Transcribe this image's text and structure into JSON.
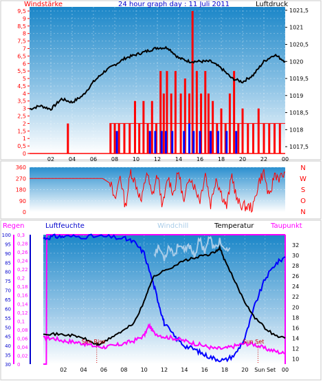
{
  "title": "24 hour graph day : 11 Juli 2011",
  "colors": {
    "wind": "#ff0000",
    "pressure": "#000000",
    "gust": "#0000ff",
    "humidity": "#0000ff",
    "chill": "#a8cce8",
    "temp": "#000000",
    "dew": "#ff00ff",
    "rain": "#ff00ff"
  },
  "chart_data": [
    {
      "type": "line",
      "name": "wind-pressure",
      "left_label": "Windstärke",
      "right_label": "Luftdruck",
      "x_ticks": [
        "02",
        "04",
        "06",
        "08",
        "10",
        "12",
        "14",
        "16",
        "18",
        "20",
        "22",
        "00"
      ],
      "y_left_ticks": [
        "0",
        "0,5",
        "1",
        "1,5",
        "2",
        "2,5",
        "3",
        "3,5",
        "4",
        "4,5",
        "5",
        "5,5",
        "6",
        "6,5",
        "7",
        "7,5",
        "8",
        "8,5",
        "9",
        "9,5"
      ],
      "y_left_range": [
        0,
        9.5
      ],
      "y_right_ticks": [
        "1017,5",
        "1018",
        "1018,5",
        "1019",
        "1019,5",
        "1020",
        "1020,5",
        "1021",
        "1021,5"
      ],
      "y_right_range": [
        1017.3,
        1021.6
      ],
      "pressure_series": {
        "x": [
          0,
          1,
          2,
          3,
          4,
          5,
          6,
          7,
          8,
          9,
          10,
          11,
          12,
          13,
          14,
          15,
          16,
          17,
          18,
          19,
          20,
          21,
          22,
          23,
          24
        ],
        "y": [
          1018.6,
          1018.7,
          1018.6,
          1018.9,
          1018.8,
          1019.0,
          1019.4,
          1019.7,
          1019.9,
          1020.1,
          1020.2,
          1020.3,
          1020.4,
          1020.4,
          1020.1,
          1020.0,
          1020.0,
          1020.0,
          1019.8,
          1019.5,
          1019.4,
          1019.6,
          1020.0,
          1020.2,
          1020.0
        ]
      },
      "wind_bursts": [
        {
          "x": 3.6,
          "v": 2
        },
        {
          "x": 7.6,
          "v": 2
        },
        {
          "x": 8.0,
          "v": 2
        },
        {
          "x": 8.4,
          "v": 2
        },
        {
          "x": 8.9,
          "v": 2
        },
        {
          "x": 9.4,
          "v": 2
        },
        {
          "x": 9.9,
          "v": 3.5
        },
        {
          "x": 10.3,
          "v": 2
        },
        {
          "x": 10.7,
          "v": 3.5
        },
        {
          "x": 11.1,
          "v": 2
        },
        {
          "x": 11.5,
          "v": 3.5
        },
        {
          "x": 11.9,
          "v": 2
        },
        {
          "x": 12.3,
          "v": 5.5
        },
        {
          "x": 12.6,
          "v": 4
        },
        {
          "x": 12.9,
          "v": 5.5
        },
        {
          "x": 13.3,
          "v": 4
        },
        {
          "x": 13.7,
          "v": 5.5
        },
        {
          "x": 14.2,
          "v": 4
        },
        {
          "x": 14.6,
          "v": 5
        },
        {
          "x": 15.0,
          "v": 4
        },
        {
          "x": 15.3,
          "v": 9.5
        },
        {
          "x": 15.7,
          "v": 5.5
        },
        {
          "x": 16.1,
          "v": 4
        },
        {
          "x": 16.5,
          "v": 5.5
        },
        {
          "x": 16.8,
          "v": 4
        },
        {
          "x": 17.2,
          "v": 3.5
        },
        {
          "x": 17.6,
          "v": 2
        },
        {
          "x": 18.0,
          "v": 3
        },
        {
          "x": 18.4,
          "v": 2
        },
        {
          "x": 18.8,
          "v": 4
        },
        {
          "x": 19.2,
          "v": 5.5
        },
        {
          "x": 19.6,
          "v": 2
        },
        {
          "x": 20.0,
          "v": 3
        },
        {
          "x": 20.5,
          "v": 2
        },
        {
          "x": 21.0,
          "v": 2
        },
        {
          "x": 21.5,
          "v": 3
        },
        {
          "x": 22.0,
          "v": 2
        },
        {
          "x": 22.5,
          "v": 2
        },
        {
          "x": 23.0,
          "v": 2
        },
        {
          "x": 23.5,
          "v": 2
        }
      ],
      "gust_bursts": [
        {
          "x": 8.2,
          "v": 1.5
        },
        {
          "x": 11.3,
          "v": 1.5
        },
        {
          "x": 11.8,
          "v": 1.5
        },
        {
          "x": 12.4,
          "v": 1.5
        },
        {
          "x": 12.8,
          "v": 1.5
        },
        {
          "x": 13.4,
          "v": 1.5
        },
        {
          "x": 14.5,
          "v": 1.5
        },
        {
          "x": 15.0,
          "v": 2
        },
        {
          "x": 15.4,
          "v": 1.5
        },
        {
          "x": 16.0,
          "v": 1.5
        },
        {
          "x": 17.0,
          "v": 1.5
        },
        {
          "x": 17.7,
          "v": 1.5
        },
        {
          "x": 18.5,
          "v": 1.5
        },
        {
          "x": 19.4,
          "v": 1.5
        }
      ]
    },
    {
      "type": "line",
      "name": "wind-direction",
      "y_ticks": [
        "360",
        "270",
        "180",
        "90",
        "0"
      ],
      "y_range": [
        0,
        360
      ],
      "compass": [
        "N",
        "W",
        "S",
        "O",
        "N"
      ],
      "series": {
        "x": [
          0,
          3.5,
          3.6,
          3.7,
          7.5,
          8,
          8.5,
          9,
          9.5,
          10,
          10.5,
          11,
          11.5,
          12,
          12.5,
          13,
          13.5,
          14,
          14.5,
          15,
          15.5,
          16,
          16.5,
          17,
          17.5,
          18,
          18.5,
          19,
          19.5,
          20,
          20.5,
          21,
          21.5,
          22,
          22.5,
          23,
          23.5,
          24
        ],
        "y": [
          270,
          270,
          245,
          270,
          270,
          80,
          300,
          40,
          330,
          220,
          80,
          330,
          120,
          300,
          40,
          280,
          150,
          330,
          60,
          300,
          200,
          100,
          320,
          60,
          280,
          150,
          40,
          300,
          80,
          50,
          40,
          40,
          240,
          320,
          100,
          310,
          270,
          320
        ]
      }
    },
    {
      "type": "line",
      "name": "humidity-temperature",
      "legend": [
        "Regen",
        "Luftfeuchte",
        "Windchill",
        "Temperatur",
        "Taupunkt"
      ],
      "y_rain_ticks": [
        "0",
        "0,02",
        "0,04",
        "0,06",
        "0,08",
        "0,1",
        "0,12",
        "0,14",
        "0,16",
        "0,18",
        "0,2",
        "0,22",
        "0,24",
        "0,26",
        "0,28",
        "0,3"
      ],
      "y_hum_ticks": [
        "30",
        "35",
        "40",
        "45",
        "50",
        "55",
        "60",
        "65",
        "70",
        "75",
        "80",
        "85",
        "90",
        "95",
        "100"
      ],
      "y_hum_range": [
        30,
        100
      ],
      "y_temp_ticks": [
        "10",
        "12",
        "14",
        "16",
        "18",
        "20",
        "22",
        "24",
        "26",
        "28",
        "30",
        "32"
      ],
      "y_temp_range": [
        9,
        34
      ],
      "humidity": {
        "x": [
          0,
          1,
          2,
          4,
          6,
          8,
          9,
          10,
          11,
          11.5,
          12,
          13,
          14,
          15,
          16,
          17,
          18,
          19,
          20,
          21,
          22,
          23,
          24
        ],
        "y": [
          98,
          99,
          99,
          99,
          99,
          98,
          96,
          90,
          72,
          62,
          52,
          45,
          40,
          38,
          35,
          33,
          32,
          35,
          44,
          62,
          76,
          84,
          88
        ]
      },
      "temperature": {
        "x": [
          0,
          1,
          2,
          3,
          4,
          5,
          5.5,
          6,
          7,
          8,
          9,
          10,
          10.5,
          11,
          12,
          13,
          14,
          15,
          16,
          17,
          17.5,
          18,
          19,
          20,
          21,
          22,
          23,
          24
        ],
        "y": [
          15.0,
          14.8,
          14.7,
          14.5,
          14.0,
          13.0,
          12.8,
          13.2,
          14.5,
          15.5,
          17.0,
          21.0,
          24.0,
          26.0,
          27.0,
          28.0,
          29.0,
          29.5,
          30.0,
          30.5,
          31.5,
          29.0,
          25.0,
          21.0,
          18.0,
          16.0,
          14.5,
          14.0
        ]
      },
      "windchill": {
        "x": [
          11,
          11.5,
          12,
          12.5,
          13,
          13.5,
          14,
          14.5,
          15,
          15.5,
          16,
          16.5,
          17,
          17.5,
          18,
          18.5
        ],
        "y": [
          30.5,
          31.5,
          29.5,
          32.0,
          30.0,
          32.5,
          30.5,
          32.0,
          30.0,
          33.0,
          31.0,
          33.5,
          31.0,
          33.0,
          30.5,
          31.5
        ]
      },
      "dewpoint": {
        "x": [
          0,
          1,
          2,
          3,
          4,
          5,
          6,
          7,
          8,
          9,
          10,
          10.5,
          11,
          12,
          13,
          14,
          15,
          16,
          17,
          18,
          19,
          20,
          21,
          22,
          23,
          24
        ],
        "y": [
          14.0,
          14.0,
          13.5,
          13.3,
          13.0,
          12.5,
          12.3,
          12.5,
          13.0,
          13.5,
          14.5,
          16.5,
          15.0,
          14.3,
          14.0,
          13.5,
          13.0,
          12.5,
          12.0,
          12.0,
          12.5,
          13.0,
          12.8,
          12.0,
          11.5,
          11.0
        ]
      },
      "rain": {
        "x": [
          0,
          0.3,
          0.35,
          24
        ],
        "y": [
          0,
          0,
          0.3,
          0.3
        ]
      },
      "annotations": [
        {
          "text": "Sun Rise",
          "x": 5.3
        },
        {
          "text": "Sun Set",
          "x": 21.3
        }
      ],
      "x_labels": [
        "02",
        "04",
        "06",
        "08",
        "10",
        "12",
        "14",
        "16",
        "18",
        "20",
        "Sun Set",
        "00"
      ]
    }
  ]
}
